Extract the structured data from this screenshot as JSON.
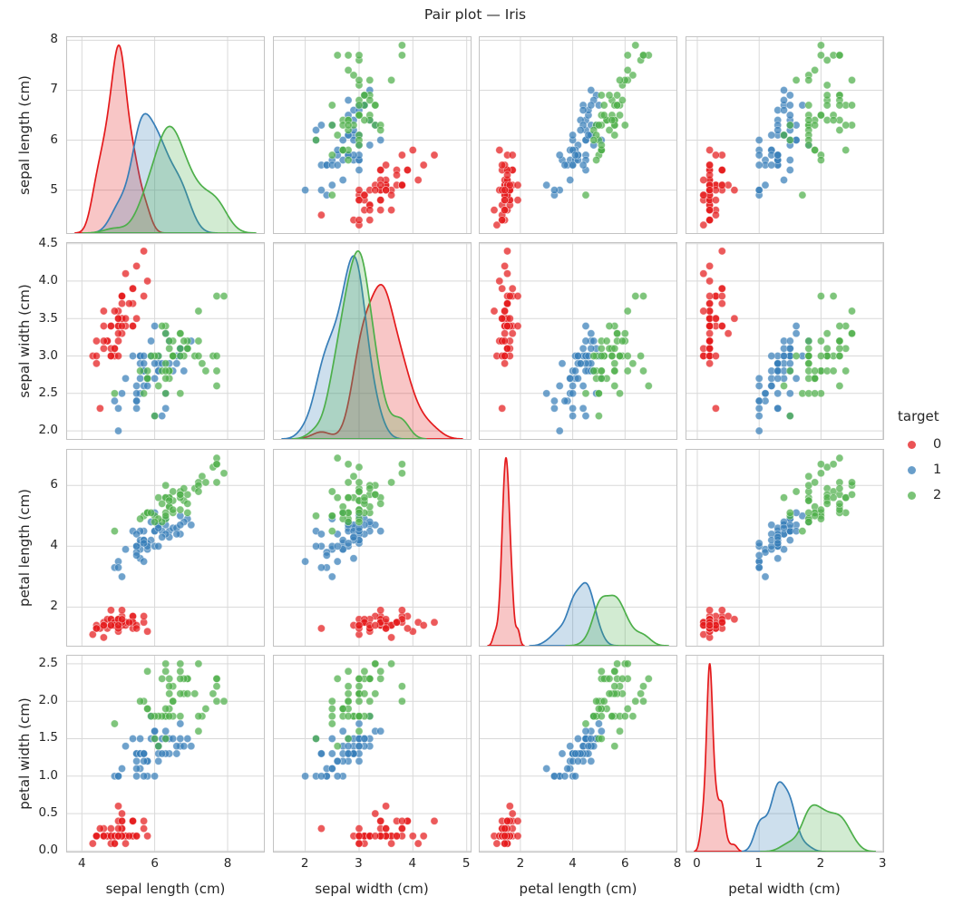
{
  "title": "Pair plot — Iris",
  "legend": {
    "title": "target",
    "entries": [
      {
        "label": "0",
        "color": "#e41a1c"
      },
      {
        "label": "1",
        "color": "#377eb8"
      },
      {
        "label": "2",
        "color": "#4daf4a"
      }
    ]
  },
  "chart_data": {
    "type": "scatter",
    "subtype": "pairplot-matrix",
    "title": "Pair plot — Iris",
    "diagonal": "kde",
    "grid": true,
    "legend_position": "right",
    "legend_title": "target",
    "variables": [
      "sepal length (cm)",
      "sepal width (cm)",
      "petal length (cm)",
      "petal width (cm)"
    ],
    "axes": {
      "x_ranges": [
        [
          3.57,
          9.02
        ],
        [
          1.4,
          5.09
        ],
        [
          0.41,
          8.0
        ],
        [
          -0.19,
          3.02
        ]
      ],
      "y_ranges": [
        [
          4.12,
          8.08
        ],
        [
          1.88,
          4.52
        ],
        [
          0.7,
          7.2
        ],
        [
          -0.02,
          2.62
        ]
      ],
      "x_ticks": [
        [
          "4",
          "6",
          "8"
        ],
        [
          "2",
          "3",
          "4",
          "5"
        ],
        [
          "2",
          "4",
          "6",
          "8"
        ],
        [
          "0",
          "1",
          "2",
          "3"
        ]
      ],
      "y_ticks": [
        [
          "5",
          "6",
          "7",
          "8"
        ],
        [
          "2.0",
          "2.5",
          "3.0",
          "3.5",
          "4.0",
          "4.5"
        ],
        [
          "2",
          "4",
          "6"
        ],
        [
          "0.0",
          "0.5",
          "1.0",
          "1.5",
          "2.0",
          "2.5"
        ]
      ]
    },
    "style": {
      "grid_color": "#d9d9d9",
      "spine_color": "#c3c3c3",
      "text_color": "#262626",
      "marker_alpha": 0.72,
      "kde_fill_alpha": 0.25
    },
    "series": [
      {
        "name": "0",
        "color": "#e41a1c",
        "points": [
          [
            5.1,
            3.5,
            1.4,
            0.2
          ],
          [
            4.9,
            3.0,
            1.4,
            0.2
          ],
          [
            4.7,
            3.2,
            1.3,
            0.2
          ],
          [
            4.6,
            3.1,
            1.5,
            0.2
          ],
          [
            5.0,
            3.6,
            1.4,
            0.2
          ],
          [
            5.4,
            3.9,
            1.7,
            0.4
          ],
          [
            4.6,
            3.4,
            1.4,
            0.3
          ],
          [
            5.0,
            3.4,
            1.5,
            0.2
          ],
          [
            4.4,
            2.9,
            1.4,
            0.2
          ],
          [
            4.9,
            3.1,
            1.5,
            0.1
          ],
          [
            5.4,
            3.7,
            1.5,
            0.2
          ],
          [
            4.8,
            3.4,
            1.6,
            0.2
          ],
          [
            4.8,
            3.0,
            1.4,
            0.1
          ],
          [
            4.3,
            3.0,
            1.1,
            0.1
          ],
          [
            5.8,
            4.0,
            1.2,
            0.2
          ],
          [
            5.7,
            4.4,
            1.5,
            0.4
          ],
          [
            5.4,
            3.9,
            1.3,
            0.4
          ],
          [
            5.1,
            3.5,
            1.4,
            0.3
          ],
          [
            5.7,
            3.8,
            1.7,
            0.3
          ],
          [
            5.1,
            3.8,
            1.5,
            0.3
          ],
          [
            5.4,
            3.4,
            1.7,
            0.2
          ],
          [
            5.1,
            3.7,
            1.5,
            0.4
          ],
          [
            4.6,
            3.6,
            1.0,
            0.2
          ],
          [
            5.1,
            3.3,
            1.7,
            0.5
          ],
          [
            4.8,
            3.4,
            1.9,
            0.2
          ],
          [
            5.0,
            3.0,
            1.6,
            0.2
          ],
          [
            5.0,
            3.4,
            1.6,
            0.4
          ],
          [
            5.2,
            3.5,
            1.5,
            0.2
          ],
          [
            5.2,
            3.4,
            1.4,
            0.2
          ],
          [
            4.7,
            3.2,
            1.6,
            0.2
          ],
          [
            4.8,
            3.1,
            1.6,
            0.2
          ],
          [
            5.4,
            3.4,
            1.5,
            0.4
          ],
          [
            5.2,
            4.1,
            1.5,
            0.1
          ],
          [
            5.5,
            4.2,
            1.4,
            0.2
          ],
          [
            4.9,
            3.1,
            1.5,
            0.2
          ],
          [
            5.0,
            3.2,
            1.2,
            0.2
          ],
          [
            5.5,
            3.5,
            1.3,
            0.2
          ],
          [
            4.9,
            3.6,
            1.4,
            0.1
          ],
          [
            4.4,
            3.0,
            1.3,
            0.2
          ],
          [
            5.1,
            3.4,
            1.5,
            0.2
          ],
          [
            5.0,
            3.5,
            1.3,
            0.3
          ],
          [
            4.5,
            2.3,
            1.3,
            0.3
          ],
          [
            4.4,
            3.2,
            1.3,
            0.2
          ],
          [
            5.0,
            3.5,
            1.6,
            0.6
          ],
          [
            5.1,
            3.8,
            1.9,
            0.4
          ],
          [
            4.8,
            3.0,
            1.4,
            0.3
          ],
          [
            5.1,
            3.8,
            1.6,
            0.2
          ],
          [
            4.6,
            3.2,
            1.4,
            0.2
          ],
          [
            5.3,
            3.7,
            1.5,
            0.2
          ],
          [
            5.0,
            3.3,
            1.4,
            0.2
          ]
        ]
      },
      {
        "name": "1",
        "color": "#377eb8",
        "points": [
          [
            7.0,
            3.2,
            4.7,
            1.4
          ],
          [
            6.4,
            3.2,
            4.5,
            1.5
          ],
          [
            6.9,
            3.1,
            4.9,
            1.5
          ],
          [
            5.5,
            2.3,
            4.0,
            1.3
          ],
          [
            6.5,
            2.8,
            4.6,
            1.5
          ],
          [
            5.7,
            2.8,
            4.5,
            1.3
          ],
          [
            6.3,
            3.3,
            4.7,
            1.6
          ],
          [
            4.9,
            2.4,
            3.3,
            1.0
          ],
          [
            6.6,
            2.9,
            4.6,
            1.3
          ],
          [
            5.2,
            2.7,
            3.9,
            1.4
          ],
          [
            5.0,
            2.0,
            3.5,
            1.0
          ],
          [
            5.9,
            3.0,
            4.2,
            1.5
          ],
          [
            6.0,
            2.2,
            4.0,
            1.0
          ],
          [
            6.1,
            2.9,
            4.7,
            1.4
          ],
          [
            5.6,
            2.9,
            3.6,
            1.3
          ],
          [
            6.7,
            3.1,
            4.4,
            1.4
          ],
          [
            5.6,
            3.0,
            4.5,
            1.5
          ],
          [
            5.8,
            2.7,
            4.1,
            1.0
          ],
          [
            6.2,
            2.2,
            4.5,
            1.5
          ],
          [
            5.6,
            2.5,
            3.9,
            1.1
          ],
          [
            5.9,
            3.2,
            4.8,
            1.8
          ],
          [
            6.1,
            2.8,
            4.0,
            1.3
          ],
          [
            6.3,
            2.5,
            4.9,
            1.5
          ],
          [
            6.1,
            2.8,
            4.7,
            1.2
          ],
          [
            6.4,
            2.9,
            4.3,
            1.3
          ],
          [
            6.6,
            3.0,
            4.4,
            1.4
          ],
          [
            6.8,
            2.8,
            4.8,
            1.4
          ],
          [
            6.7,
            3.0,
            5.0,
            1.7
          ],
          [
            6.0,
            2.9,
            4.5,
            1.5
          ],
          [
            5.7,
            2.6,
            3.5,
            1.0
          ],
          [
            5.5,
            2.4,
            3.8,
            1.1
          ],
          [
            5.5,
            2.4,
            3.7,
            1.0
          ],
          [
            5.8,
            2.7,
            3.9,
            1.2
          ],
          [
            6.0,
            2.7,
            5.1,
            1.6
          ],
          [
            5.4,
            3.0,
            4.5,
            1.5
          ],
          [
            6.0,
            3.4,
            4.5,
            1.6
          ],
          [
            6.7,
            3.1,
            4.7,
            1.5
          ],
          [
            6.3,
            2.3,
            4.4,
            1.3
          ],
          [
            5.6,
            3.0,
            4.1,
            1.3
          ],
          [
            5.5,
            2.5,
            4.0,
            1.3
          ],
          [
            5.5,
            2.6,
            4.4,
            1.2
          ],
          [
            6.1,
            3.0,
            4.6,
            1.4
          ],
          [
            5.8,
            2.6,
            4.0,
            1.2
          ],
          [
            5.0,
            2.3,
            3.3,
            1.0
          ],
          [
            5.6,
            2.7,
            4.2,
            1.3
          ],
          [
            5.7,
            3.0,
            4.2,
            1.2
          ],
          [
            5.7,
            2.9,
            4.2,
            1.3
          ],
          [
            6.2,
            2.9,
            4.3,
            1.3
          ],
          [
            5.1,
            2.5,
            3.0,
            1.1
          ],
          [
            5.7,
            2.8,
            4.1,
            1.3
          ]
        ]
      },
      {
        "name": "2",
        "color": "#4daf4a",
        "points": [
          [
            6.3,
            3.3,
            6.0,
            2.5
          ],
          [
            5.8,
            2.7,
            5.1,
            1.9
          ],
          [
            7.1,
            3.0,
            5.9,
            2.1
          ],
          [
            6.3,
            2.9,
            5.6,
            1.8
          ],
          [
            6.5,
            3.0,
            5.8,
            2.2
          ],
          [
            7.6,
            3.0,
            6.6,
            2.1
          ],
          [
            4.9,
            2.5,
            4.5,
            1.7
          ],
          [
            7.3,
            2.9,
            6.3,
            1.8
          ],
          [
            6.7,
            2.5,
            5.8,
            1.8
          ],
          [
            7.2,
            3.6,
            6.1,
            2.5
          ],
          [
            6.5,
            3.2,
            5.1,
            2.0
          ],
          [
            6.4,
            2.7,
            5.3,
            1.9
          ],
          [
            6.8,
            3.0,
            5.5,
            2.1
          ],
          [
            5.7,
            2.5,
            5.0,
            2.0
          ],
          [
            5.8,
            2.8,
            5.1,
            2.4
          ],
          [
            6.4,
            3.2,
            5.3,
            2.3
          ],
          [
            6.5,
            3.0,
            5.5,
            1.8
          ],
          [
            7.7,
            3.8,
            6.7,
            2.2
          ],
          [
            7.7,
            2.6,
            6.9,
            2.3
          ],
          [
            6.0,
            2.2,
            5.0,
            1.5
          ],
          [
            6.9,
            3.2,
            5.7,
            2.3
          ],
          [
            5.6,
            2.8,
            4.9,
            2.0
          ],
          [
            7.7,
            2.8,
            6.7,
            2.0
          ],
          [
            6.3,
            2.7,
            4.9,
            1.8
          ],
          [
            6.7,
            3.3,
            5.7,
            2.1
          ],
          [
            7.2,
            3.2,
            6.0,
            1.8
          ],
          [
            6.2,
            2.8,
            4.8,
            1.8
          ],
          [
            6.1,
            3.0,
            4.9,
            1.8
          ],
          [
            6.4,
            2.8,
            5.6,
            2.1
          ],
          [
            7.2,
            3.0,
            5.8,
            1.6
          ],
          [
            7.4,
            2.8,
            6.1,
            1.9
          ],
          [
            7.9,
            3.8,
            6.4,
            2.0
          ],
          [
            6.4,
            2.8,
            5.6,
            2.2
          ],
          [
            6.3,
            2.8,
            5.1,
            1.5
          ],
          [
            6.1,
            2.6,
            5.6,
            1.4
          ],
          [
            7.7,
            3.0,
            6.1,
            2.3
          ],
          [
            6.3,
            3.4,
            5.6,
            2.4
          ],
          [
            6.4,
            3.1,
            5.5,
            1.8
          ],
          [
            6.0,
            3.0,
            4.8,
            1.8
          ],
          [
            6.9,
            3.1,
            5.4,
            2.1
          ],
          [
            6.7,
            3.1,
            5.6,
            2.4
          ],
          [
            6.9,
            3.1,
            5.1,
            2.3
          ],
          [
            5.8,
            2.7,
            5.1,
            1.9
          ],
          [
            6.8,
            3.2,
            5.9,
            2.3
          ],
          [
            6.7,
            3.3,
            5.7,
            2.5
          ],
          [
            6.7,
            3.0,
            5.2,
            2.3
          ],
          [
            6.3,
            2.5,
            5.0,
            1.9
          ],
          [
            6.5,
            3.0,
            5.2,
            2.0
          ],
          [
            6.2,
            3.4,
            5.4,
            2.3
          ],
          [
            5.9,
            3.0,
            5.1,
            1.8
          ]
        ]
      }
    ]
  }
}
